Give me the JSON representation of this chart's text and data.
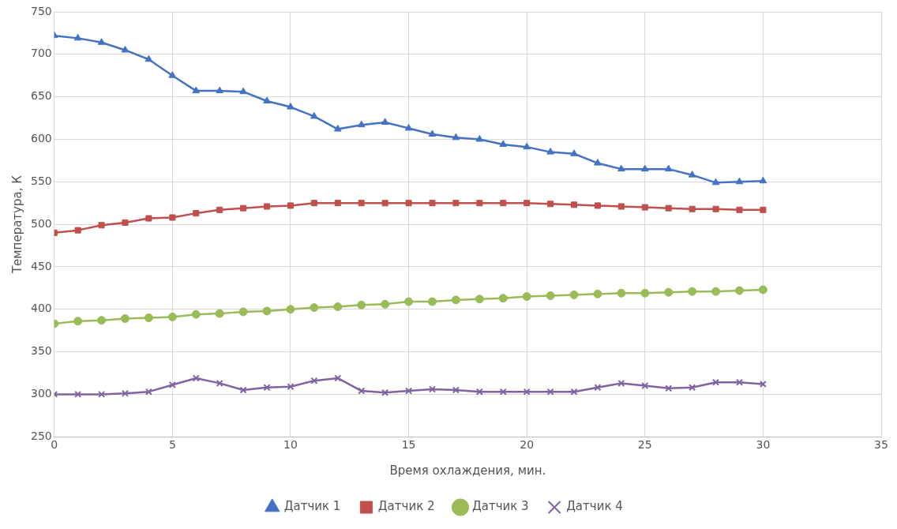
{
  "chart_data": {
    "type": "line",
    "xlabel": "Время охлаждения, мин.",
    "ylabel": "Температура, К",
    "x": [
      0,
      1,
      2,
      3,
      4,
      5,
      6,
      7,
      8,
      9,
      10,
      11,
      12,
      13,
      14,
      15,
      16,
      17,
      18,
      19,
      20,
      21,
      22,
      23,
      24,
      25,
      26,
      27,
      28,
      29,
      30
    ],
    "xlim": [
      0,
      35
    ],
    "xticks": [
      0,
      5,
      10,
      15,
      20,
      25,
      30,
      35
    ],
    "ylim": [
      250,
      750
    ],
    "yticks": [
      250,
      300,
      350,
      400,
      450,
      500,
      550,
      600,
      650,
      700,
      750
    ],
    "grid": true,
    "legend": "bottom",
    "line_style": "solid",
    "series": [
      {
        "name": "Датчик 1",
        "color": "#4472c4",
        "marker": "triangle",
        "values": [
          722,
          719,
          714,
          705,
          694,
          675,
          657,
          657,
          656,
          645,
          638,
          627,
          612,
          617,
          620,
          613,
          606,
          602,
          600,
          594,
          591,
          585,
          583,
          572,
          565,
          565,
          565,
          558,
          549,
          550,
          551
        ]
      },
      {
        "name": "Датчик 2",
        "color": "#c0504d",
        "marker": "square",
        "values": [
          490,
          493,
          499,
          502,
          507,
          508,
          513,
          517,
          519,
          521,
          522,
          525,
          525,
          525,
          525,
          525,
          525,
          525,
          525,
          525,
          525,
          524,
          523,
          522,
          521,
          520,
          519,
          518,
          518,
          517,
          517
        ]
      },
      {
        "name": "Датчик 3",
        "color": "#9bbb59",
        "marker": "circle",
        "values": [
          383,
          386,
          387,
          389,
          390,
          391,
          394,
          395,
          397,
          398,
          400,
          402,
          403,
          405,
          406,
          409,
          409,
          411,
          412,
          413,
          415,
          416,
          417,
          418,
          419,
          419,
          420,
          421,
          421,
          422,
          423
        ]
      },
      {
        "name": "Датчик 4",
        "color": "#8064a2",
        "marker": "cross",
        "values": [
          300,
          300,
          300,
          301,
          303,
          311,
          319,
          313,
          305,
          308,
          309,
          316,
          319,
          304,
          302,
          304,
          306,
          305,
          303,
          303,
          303,
          303,
          303,
          308,
          313,
          310,
          307,
          308,
          314,
          314,
          312
        ]
      }
    ]
  }
}
